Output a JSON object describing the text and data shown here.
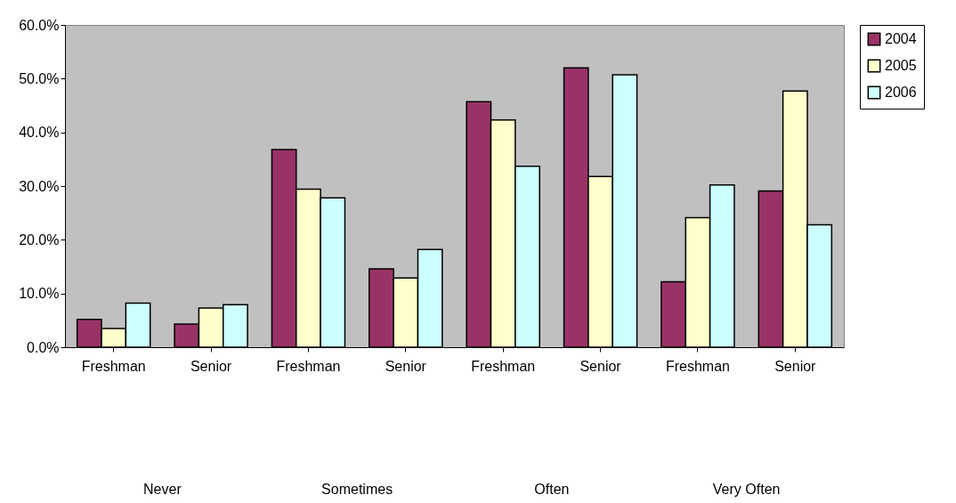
{
  "chart_data": {
    "type": "bar",
    "categories": [
      "Freshman",
      "Senior",
      "Freshman",
      "Senior",
      "Freshman",
      "Senior",
      "Freshman",
      "Senior"
    ],
    "annotations": [
      "Never",
      "Sometimes",
      "Often",
      "Very Often"
    ],
    "series": [
      {
        "name": "2004",
        "color": "#993366",
        "values": [
          5.2,
          4.3,
          36.8,
          14.6,
          45.7,
          52.0,
          12.2,
          29.1
        ]
      },
      {
        "name": "2005",
        "color": "#ffffcc",
        "values": [
          3.5,
          7.3,
          29.4,
          12.9,
          42.3,
          31.8,
          24.1,
          47.7
        ]
      },
      {
        "name": "2006",
        "color": "#ccffff",
        "values": [
          8.2,
          7.9,
          27.8,
          18.2,
          33.7,
          50.7,
          30.2,
          22.8
        ]
      }
    ],
    "ylim": [
      0,
      60
    ],
    "yticks": [
      {
        "value": 0,
        "label": "0.0%"
      },
      {
        "value": 10,
        "label": "10.0%"
      },
      {
        "value": 20,
        "label": "20.0%"
      },
      {
        "value": 30,
        "label": "30.0%"
      },
      {
        "value": 40,
        "label": "40.0%"
      },
      {
        "value": 50,
        "label": "50.0%"
      },
      {
        "value": 60,
        "label": "60.0%"
      }
    ],
    "grid": false,
    "legend": "right"
  }
}
